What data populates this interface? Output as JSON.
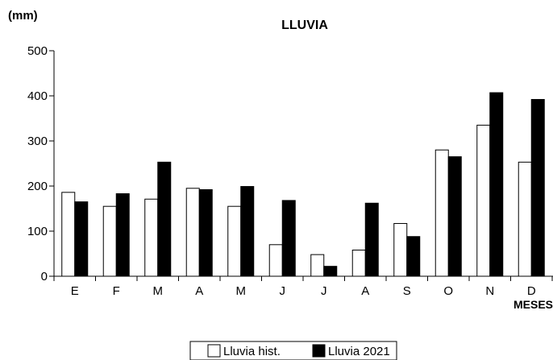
{
  "chart_data": {
    "type": "bar",
    "title": "LLUVIA",
    "ylabel": "(mm)",
    "xlabel": "MESES",
    "categories": [
      "E",
      "F",
      "M",
      "A",
      "M",
      "J",
      "J",
      "A",
      "S",
      "O",
      "N",
      "D"
    ],
    "series": [
      {
        "name": "Lluvia hist.",
        "values": [
          186,
          155,
          171,
          195,
          155,
          70,
          48,
          58,
          117,
          280,
          335,
          253
        ],
        "color": "#ffffff"
      },
      {
        "name": "Lluvia 2021",
        "values": [
          165,
          183,
          253,
          192,
          199,
          168,
          22,
          162,
          88,
          265,
          407,
          392
        ],
        "color": "#000000"
      }
    ],
    "ylim": [
      0,
      500
    ],
    "yticks": [
      0,
      100,
      200,
      300,
      400,
      500
    ],
    "grid": false,
    "legend_position": "bottom-center"
  }
}
